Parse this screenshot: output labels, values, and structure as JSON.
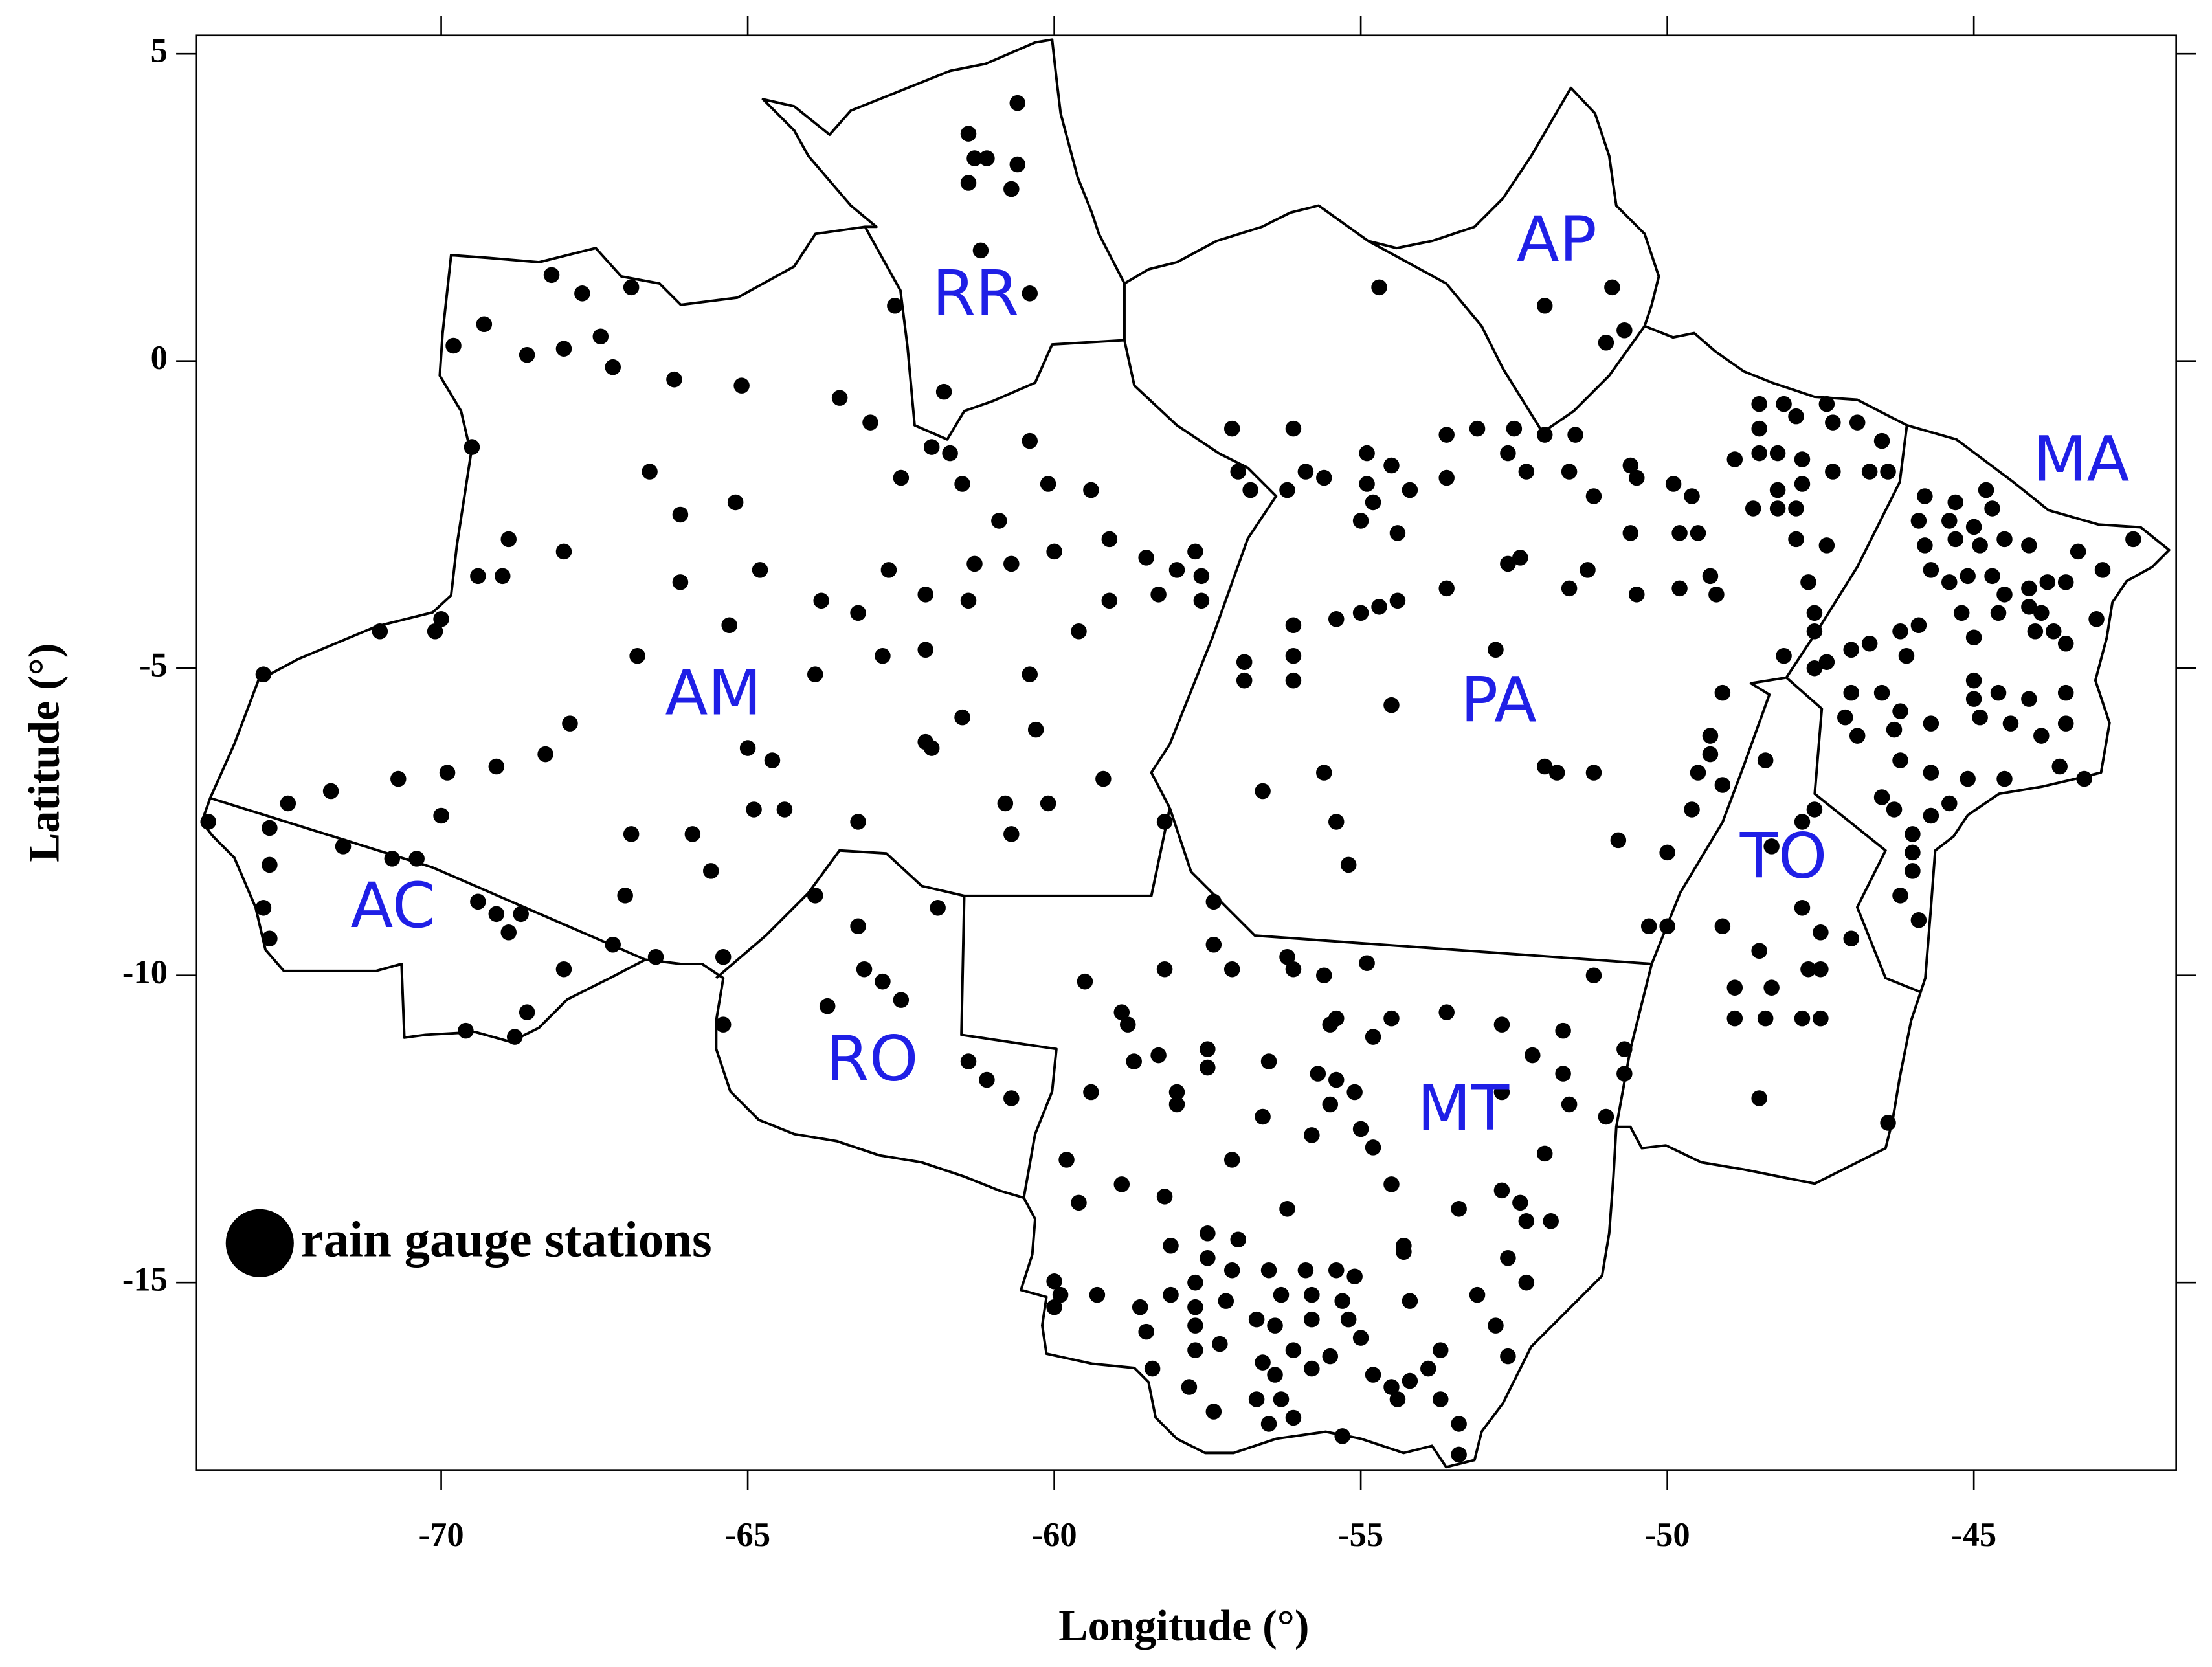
{
  "chart_data": {
    "type": "scatter",
    "x_label": "Longitude (°)",
    "y_label": "Latitude (°)",
    "xlim": [
      -74,
      -41.7
    ],
    "ylim": [
      -18.05,
      5.3
    ],
    "xticks": [
      -70,
      -65,
      -60,
      -55,
      -50,
      -45
    ],
    "yticks": [
      5,
      0,
      -5,
      -10,
      -15
    ],
    "annotations": [
      "RR",
      "AP",
      "AM",
      "PA",
      "MA",
      "AC",
      "TO",
      "RO",
      "MT"
    ],
    "series": [
      {
        "name": "rain gauge stations",
        "color": "#000000",
        "x": [
          -60.6,
          -61.4,
          -61.3,
          -61.1,
          -60.6,
          -61.4,
          -60.7,
          -61.2,
          -60.4,
          -62.6,
          -61.8,
          -68.2,
          -67.7,
          -66.9,
          -69.3,
          -69.8,
          -68.6,
          -68.0,
          -67.4,
          -67.2,
          -66.2,
          -65.1,
          -63.5,
          -63.0,
          -69.5,
          -66.6,
          -62.5,
          -62.0,
          -61.7,
          -61.5,
          -60.4,
          -60.9,
          -60.1,
          -59.4,
          -66.1,
          -65.2,
          -68.9,
          -68.0,
          -69.0,
          -69.4,
          -66.1,
          -64.8,
          -62.7,
          -61.3,
          -60.7,
          -60.0,
          -59.1,
          -58.5,
          -57.7,
          -58.0,
          -57.6,
          -71.0,
          -70.0,
          -70.1,
          -65.3,
          -63.8,
          -63.2,
          -62.1,
          -61.4,
          -59.6,
          -59.1,
          -58.3,
          -57.6,
          -66.8,
          -63.9,
          -62.8,
          -62.1,
          -60.4,
          -72.9,
          -67.9,
          -65.0,
          -64.6,
          -62.1,
          -62.0,
          -61.5,
          -60.3,
          -69.1,
          -69.9,
          -70.7,
          -68.3,
          -71.8,
          -72.5,
          -70.0,
          -64.9,
          -64.4,
          -63.2,
          -60.8,
          -60.1,
          -59.2,
          -60.7,
          -66.9,
          -65.9,
          -65.6,
          -67.0,
          -67.2,
          -66.5,
          -58.2,
          -73.8,
          -72.8,
          -72.8,
          -71.6,
          -70.8,
          -70.4,
          -72.9,
          -72.8,
          -69.4,
          -69.1,
          -68.7,
          -68.9,
          -68.0,
          -68.6,
          -68.8,
          -69.6,
          -63.9,
          -63.2,
          -63.1,
          -62.8,
          -62.5,
          -63.7,
          -65.4,
          -65.4,
          -61.9,
          -61.4,
          -61.1,
          -60.7,
          -59.5,
          -58.9,
          -58.8,
          -58.2,
          -57.4,
          -57.4,
          -57.1,
          -58.7,
          -58.3,
          -57.5,
          -57.5,
          -58.0,
          -58.0,
          -59.4,
          -56.5,
          -56.6,
          -56.2,
          -56.1,
          -55.6,
          -54.9,
          -55.4,
          -55.5,
          -54.8,
          -54.5,
          -53.6,
          -52.7,
          -51.7,
          -51.2,
          -55.7,
          -55.4,
          -55.1,
          -55.5,
          -55.0,
          -54.8,
          -55.8,
          -52.2,
          -51.7,
          -51.6,
          -52.7,
          -51.0,
          -50.7,
          -57.1,
          -59.8,
          -59.6,
          -58.9,
          -58.2,
          -56.2,
          -54.5,
          -53.4,
          -52.7,
          -52.0,
          -52.4,
          -52.3,
          -51.9,
          -58.1,
          -54.3,
          -54.3,
          -52.6,
          -60.0,
          -59.9,
          -59.3,
          -60.0,
          -58.6,
          -57.5,
          -57.0,
          -57.5,
          -58.1,
          -57.7,
          -57.7,
          -57.1,
          -56.5,
          -55.9,
          -55.4,
          -55.1,
          -57.2,
          -56.3,
          -55.8,
          -55.3,
          -54.2,
          -53.1,
          -52.3,
          -58.5,
          -57.7,
          -56.7,
          -56.4,
          -55.8,
          -55.2,
          -55.0,
          -52.8,
          -58.4,
          -57.7,
          -57.3,
          -56.1,
          -55.5,
          -53.7,
          -57.8,
          -56.6,
          -56.4,
          -55.8,
          -54.8,
          -53.9,
          -54.2,
          -52.6,
          -57.4,
          -56.7,
          -56.3,
          -56.5,
          -56.1,
          -54.5,
          -54.4,
          -53.7,
          -53.4,
          -55.3,
          -53.4,
          -50.7,
          -52.0,
          -50.9,
          -51.0,
          -50.7,
          -54.7,
          -52.0,
          -52.5,
          -53.1,
          -53.6,
          -56.1,
          -57.1,
          -57.0,
          -56.8,
          -56.2,
          -55.9,
          -55.6,
          -54.9,
          -54.9,
          -54.5,
          -54.2,
          -54.8,
          -55.0,
          -54.4,
          -53.6,
          -52.6,
          -52.3,
          -51.5,
          -51.6,
          -51.2,
          -50.6,
          -50.5,
          -49.9,
          -49.6,
          -49.8,
          -49.5,
          -50.6,
          -52.4,
          -52.6,
          -51.3,
          -51.6,
          -50.5,
          -49.8,
          -49.3,
          -49.2,
          -53.6,
          -54.4,
          -54.7,
          -55.0,
          -55.4,
          -56.1,
          -56.1,
          -56.1,
          -56.9,
          -56.9,
          -54.5,
          -52.8,
          -52.0,
          -51.8,
          -51.2,
          -56.6,
          -55.6,
          -55.4,
          -55.2,
          -50.8,
          -50.0,
          -50.3,
          -50.0,
          -49.1,
          -49.3,
          -49.3,
          -49.5,
          -49.1,
          -49.6,
          -48.4,
          -47.6,
          -47.8,
          -48.3,
          -47.8,
          -47.5,
          -47.0,
          -49.1,
          -48.5,
          -47.7,
          -47.5,
          -48.9,
          -48.3,
          -48.9,
          -48.4,
          -47.8,
          -47.5,
          -48.5,
          -46.4,
          -48.5,
          -48.1,
          -47.4,
          -48.5,
          -47.9,
          -47.3,
          -46.9,
          -46.5,
          -48.9,
          -48.5,
          -48.2,
          -47.8,
          -47.3,
          -46.7,
          -46.4,
          -48.6,
          -48.2,
          -47.8,
          -47.9,
          -48.2,
          -47.9,
          -47.4,
          -47.7,
          -47.6,
          -47.6,
          -48.1,
          -47.6,
          -47.4,
          -47.0,
          -46.7,
          -46.2,
          -45.9,
          -46.1,
          -45.2,
          -45.8,
          -45.3,
          -44.8,
          -44.7,
          -45.9,
          -45.4,
          -45.0,
          -45.8,
          -45.3,
          -44.9,
          -44.5,
          -44.1,
          -43.3,
          -42.4,
          -45.7,
          -45.4,
          -45.1,
          -44.7,
          -44.5,
          -44.1,
          -43.8,
          -43.5,
          -42.9,
          -44.1,
          -43.9,
          -44.6,
          -43.0,
          -45.0,
          -44.0,
          -43.7,
          -43.5,
          -46.5,
          -46.2,
          -45.0,
          -45.0,
          -44.6,
          -44.1,
          -43.5,
          -47.0,
          -47.1,
          -46.3,
          -45.7,
          -44.9,
          -44.4,
          -43.9,
          -43.5,
          -46.9,
          -46.2,
          -45.7,
          -45.1,
          -44.5,
          -43.6,
          -43.2,
          -46.5,
          -46.3,
          -45.7,
          -45.4,
          -46.0,
          -46.0,
          -46.0,
          -46.2,
          -45.9
        ],
        "y": [
          4.2,
          3.7,
          3.3,
          3.3,
          3.2,
          2.9,
          2.8,
          1.8,
          1.1,
          0.9,
          -0.5,
          1.4,
          1.1,
          1.2,
          0.6,
          0.25,
          0.1,
          0.2,
          0.4,
          -0.1,
          -0.3,
          -0.4,
          -0.6,
          -1.0,
          -1.4,
          -1.8,
          -1.9,
          -1.4,
          -1.5,
          -2.0,
          -1.3,
          -2.6,
          -2.0,
          -2.1,
          -2.5,
          -2.3,
          -2.9,
          -3.1,
          -3.5,
          -3.5,
          -3.6,
          -3.4,
          -3.4,
          -3.3,
          -3.3,
          -3.1,
          -2.9,
          -3.2,
          -3.1,
          -3.4,
          -3.5,
          -4.4,
          -4.2,
          -4.4,
          -4.3,
          -3.9,
          -4.1,
          -3.8,
          -3.9,
          -4.4,
          -3.9,
          -3.8,
          -3.9,
          -4.8,
          -5.1,
          -4.8,
          -4.7,
          -5.1,
          -5.1,
          -5.9,
          -6.3,
          -6.5,
          -6.2,
          -6.3,
          -5.8,
          -6.0,
          -6.6,
          -6.7,
          -6.8,
          -6.4,
          -7.0,
          -7.2,
          -7.4,
          -7.3,
          -7.3,
          -7.5,
          -7.2,
          -7.2,
          -6.8,
          -7.7,
          -7.7,
          -7.7,
          -8.3,
          -8.7,
          -9.5,
          -9.7,
          -7.5,
          -7.5,
          -7.6,
          -8.2,
          -7.9,
          -8.1,
          -8.1,
          -8.9,
          -9.4,
          -8.8,
          -9.0,
          -9.0,
          -9.3,
          -9.9,
          -10.6,
          -11.0,
          -10.9,
          -8.7,
          -9.2,
          -9.9,
          -10.1,
          -10.4,
          -10.5,
          -9.7,
          -10.8,
          -8.9,
          -11.4,
          -11.7,
          -12.0,
          -10.1,
          -10.6,
          -10.8,
          -9.9,
          -8.8,
          -9.5,
          -9.9,
          -11.4,
          -11.3,
          -11.2,
          -11.5,
          -11.9,
          -12.1,
          -11.9,
          -11.4,
          -12.3,
          -9.7,
          -9.9,
          -10.0,
          -9.8,
          -10.7,
          -10.8,
          -11.0,
          -10.7,
          -10.6,
          -10.8,
          -10.9,
          -10.0,
          -11.6,
          -11.7,
          -11.9,
          -12.1,
          -12.5,
          -12.8,
          -12.6,
          -11.3,
          -11.6,
          -12.1,
          -11.9,
          -12.3,
          -11.2,
          -13.0,
          -13.0,
          -13.7,
          -13.4,
          -13.6,
          -13.8,
          -13.4,
          -13.8,
          -13.5,
          -12.9,
          -13.7,
          -14.0,
          -14.0,
          -14.4,
          -14.4,
          -14.5,
          -14.6,
          -14.98,
          -15.2,
          -15.2,
          -15.4,
          -15.4,
          -14.2,
          -14.3,
          -14.6,
          -15.2,
          -15.0,
          -15.4,
          -14.8,
          -14.8,
          -14.8,
          -14.8,
          -14.9,
          -15.3,
          -15.2,
          -15.2,
          -15.3,
          -15.3,
          -15.2,
          -15.0,
          -15.8,
          -15.7,
          -15.6,
          -15.7,
          -15.6,
          -15.6,
          -15.9,
          -15.7,
          -16.4,
          -16.1,
          -16.0,
          -16.1,
          -16.2,
          -16.1,
          -16.7,
          -16.3,
          -16.5,
          -16.4,
          -16.5,
          -16.4,
          -16.6,
          -16.2,
          -17.1,
          -16.9,
          -16.9,
          -17.3,
          -17.2,
          -16.7,
          -16.9,
          -16.9,
          -17.3,
          -17.5,
          -17.8,
          -11.6,
          0.9,
          1.2,
          0.3,
          0.5,
          1.2,
          -1.2,
          -1.1,
          -1.1,
          -1.2,
          -1.1,
          -1.1,
          -1.8,
          -2.1,
          -2.1,
          -1.8,
          -1.9,
          -1.5,
          -2.0,
          -1.7,
          -2.1,
          -2.3,
          -2.6,
          -2.8,
          -1.9,
          -1.5,
          -1.8,
          -1.2,
          -1.8,
          -2.2,
          -1.7,
          -1.9,
          -2.0,
          -2.2,
          -2.8,
          -2.8,
          -2.8,
          -3.2,
          -3.3,
          -3.4,
          -3.7,
          -3.8,
          -3.7,
          -3.5,
          -3.8,
          -3.7,
          -3.9,
          -4.0,
          -4.1,
          -4.2,
          -4.3,
          -4.8,
          -5.2,
          -4.9,
          -5.2,
          -5.6,
          -4.7,
          -6.6,
          -6.7,
          -6.7,
          -7.0,
          -6.7,
          -7.5,
          -8.2,
          -7.8,
          -8.0,
          -9.2,
          -9.2,
          -5.4,
          -6.1,
          -6.4,
          -6.7,
          -6.9,
          -7.3,
          -6.5,
          -7.3,
          -7.5,
          -7.9,
          -8.9,
          -9.3,
          -9.4,
          -9.2,
          -9.6,
          -9.9,
          -9.9,
          -10.2,
          -10.2,
          -10.7,
          -10.7,
          -10.7,
          -10.7,
          -12.0,
          -12.4,
          -0.7,
          -0.7,
          -0.7,
          -1.1,
          -0.9,
          -1.0,
          -1.0,
          -1.3,
          -1.6,
          -1.5,
          -1.5,
          -1.6,
          -1.8,
          -1.8,
          -1.8,
          -2.4,
          -2.4,
          -2.0,
          -2.4,
          -2.1,
          -2.9,
          -3.0,
          -3.6,
          -4.1,
          -4.4,
          -4.8,
          -5.0,
          -4.9,
          -4.7,
          -4.6,
          -4.4,
          -4.3,
          -4.8,
          -4.1,
          -2.2,
          -2.3,
          -2.1,
          -2.4,
          -2.6,
          -2.6,
          -2.7,
          -3.0,
          -2.9,
          -3.0,
          -2.9,
          -3.0,
          -3.1,
          -2.9,
          -3.4,
          -3.6,
          -3.5,
          -3.5,
          -3.8,
          -3.7,
          -3.6,
          -3.6,
          -3.4,
          -4.0,
          -4.1,
          -4.1,
          -4.2,
          -4.5,
          -4.4,
          -4.4,
          -4.6,
          -5.4,
          -5.7,
          -5.2,
          -5.5,
          -5.4,
          -5.5,
          -5.4,
          -5.4,
          -5.8,
          -6.0,
          -5.9,
          -5.8,
          -5.9,
          -6.1,
          -5.9,
          -6.1,
          -6.5,
          -6.7,
          -6.8,
          -6.8,
          -6.6,
          -6.8,
          -7.1,
          -7.3,
          -7.4,
          -7.2,
          -7.7,
          -8.0,
          -8.3,
          -8.7,
          -9.1
        ]
      }
    ]
  }
}
